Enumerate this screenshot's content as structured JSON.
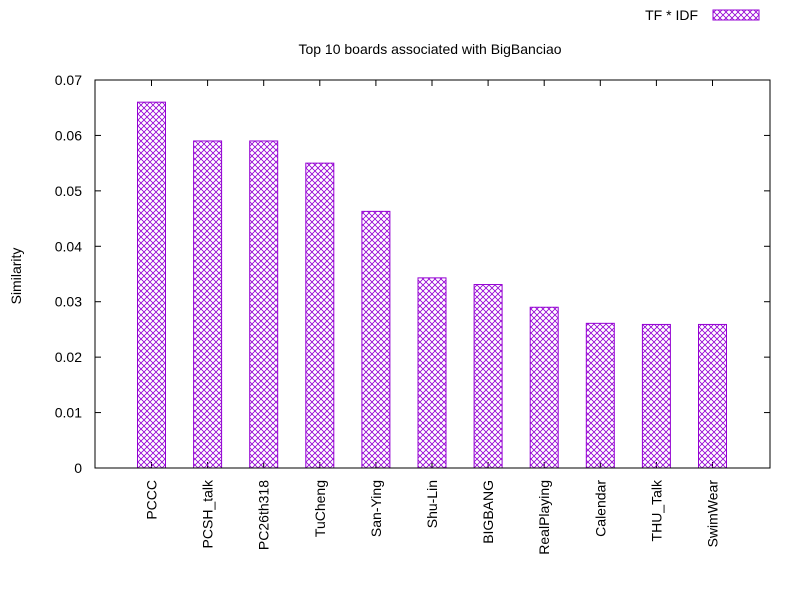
{
  "chart_data": {
    "type": "bar",
    "title": "Top 10 boards associated with BigBanciao",
    "xlabel": "",
    "ylabel": "Similarity",
    "ylim": [
      0,
      0.07
    ],
    "yticks": [
      "0",
      "0.01",
      "0.02",
      "0.03",
      "0.04",
      "0.05",
      "0.06",
      "0.07"
    ],
    "categories": [
      "PCCC",
      "PCSH_talk",
      "PC26th318",
      "TuCheng",
      "San-Ying",
      "Shu-Lin",
      "BIGBANG",
      "RealPlaying",
      "Calendar",
      "THU_Talk",
      "SwimWear"
    ],
    "series": [
      {
        "name": "TF * IDF",
        "color": "#9400d3",
        "pattern": "crosshatch",
        "values": [
          0.066,
          0.059,
          0.059,
          0.055,
          0.0463,
          0.0343,
          0.0331,
          0.029,
          0.0261,
          0.0259,
          0.0259
        ]
      }
    ],
    "grid": false,
    "legend": "top-right"
  }
}
